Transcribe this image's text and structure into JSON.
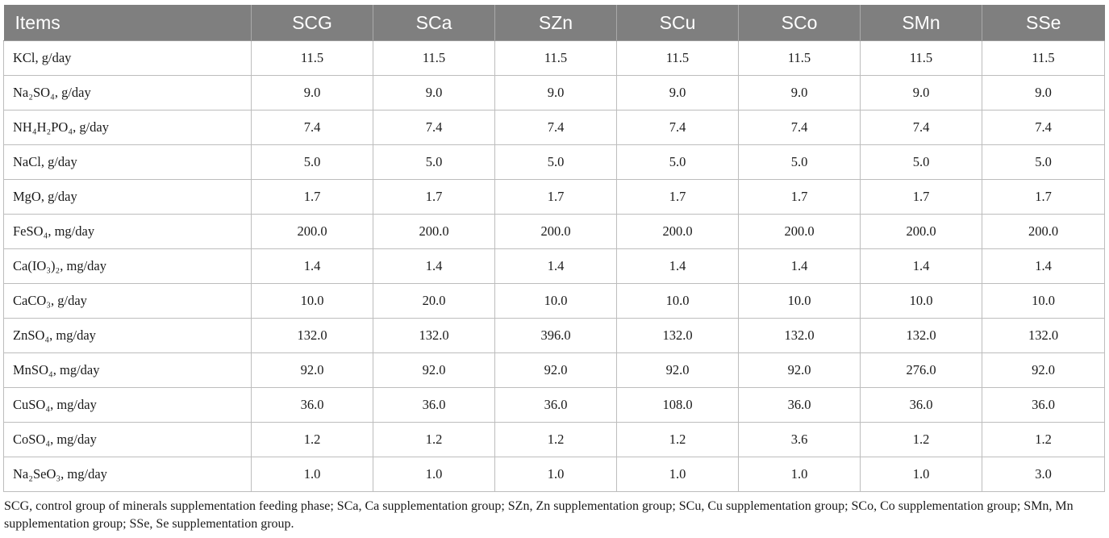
{
  "table": {
    "headers": [
      "Items",
      "SCG",
      "SCa",
      "SZn",
      "SCu",
      "SCo",
      "SMn",
      "SSe"
    ],
    "rows": [
      {
        "item": "KCl, g/day",
        "values": [
          "11.5",
          "11.5",
          "11.5",
          "11.5",
          "11.5",
          "11.5",
          "11.5"
        ]
      },
      {
        "item": "Na₂SO₄, g/day",
        "values": [
          "9.0",
          "9.0",
          "9.0",
          "9.0",
          "9.0",
          "9.0",
          "9.0"
        ]
      },
      {
        "item": "NH₄H₂PO₄, g/day",
        "values": [
          "7.4",
          "7.4",
          "7.4",
          "7.4",
          "7.4",
          "7.4",
          "7.4"
        ]
      },
      {
        "item": "NaCl, g/day",
        "values": [
          "5.0",
          "5.0",
          "5.0",
          "5.0",
          "5.0",
          "5.0",
          "5.0"
        ]
      },
      {
        "item": "MgO, g/day",
        "values": [
          "1.7",
          "1.7",
          "1.7",
          "1.7",
          "1.7",
          "1.7",
          "1.7"
        ]
      },
      {
        "item": "FeSO₄, mg/day",
        "values": [
          "200.0",
          "200.0",
          "200.0",
          "200.0",
          "200.0",
          "200.0",
          "200.0"
        ]
      },
      {
        "item": "Ca(IO₃)₂, mg/day",
        "values": [
          "1.4",
          "1.4",
          "1.4",
          "1.4",
          "1.4",
          "1.4",
          "1.4"
        ]
      },
      {
        "item": "CaCO₃, g/day",
        "values": [
          "10.0",
          "20.0",
          "10.0",
          "10.0",
          "10.0",
          "10.0",
          "10.0"
        ]
      },
      {
        "item": "ZnSO₄, mg/day",
        "values": [
          "132.0",
          "132.0",
          "396.0",
          "132.0",
          "132.0",
          "132.0",
          "132.0"
        ]
      },
      {
        "item": "MnSO₄, mg/day",
        "values": [
          "92.0",
          "92.0",
          "92.0",
          "92.0",
          "92.0",
          "276.0",
          "92.0"
        ]
      },
      {
        "item": "CuSO₄, mg/day",
        "values": [
          "36.0",
          "36.0",
          "36.0",
          "108.0",
          "36.0",
          "36.0",
          "36.0"
        ]
      },
      {
        "item": "CoSO₄, mg/day",
        "values": [
          "1.2",
          "1.2",
          "1.2",
          "1.2",
          "3.6",
          "1.2",
          "1.2"
        ]
      },
      {
        "item": "Na₂SeO₃, mg/day",
        "values": [
          "1.0",
          "1.0",
          "1.0",
          "1.0",
          "1.0",
          "1.0",
          "3.0"
        ]
      }
    ]
  },
  "footnote": "SCG, control group of minerals supplementation feeding phase; SCa, Ca supplementation group; SZn, Zn supplementation group; SCu, Cu supplementation group; SCo, Co supplementation group; SMn, Mn supplementation group; SSe, Se supplementation group.",
  "colors": {
    "header_bg": "#7f7f7f",
    "header_text": "#ffffff",
    "grid_line": "#bdbdbd"
  }
}
